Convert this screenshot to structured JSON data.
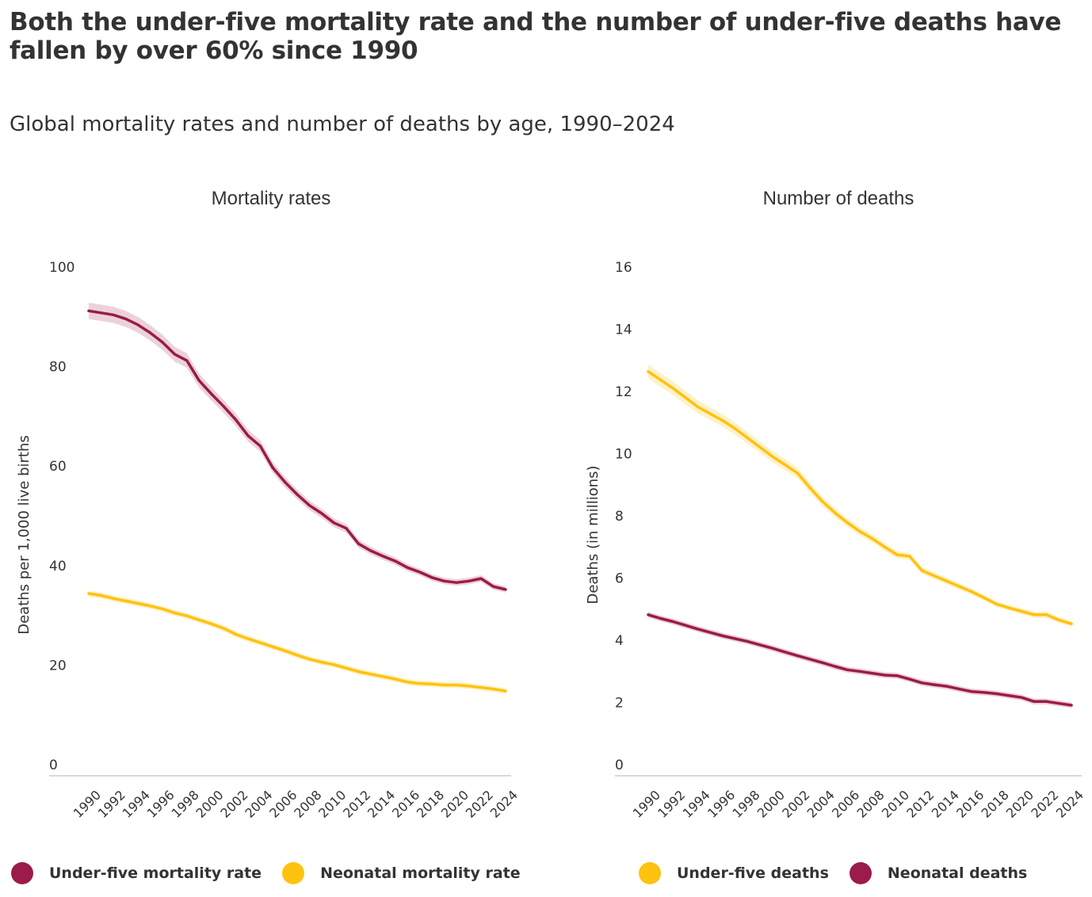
{
  "title": "Both the under-five mortality rate and the number of under-five deaths have fallen by over 60% since 1990",
  "subtitle": "Global mortality rates and number of deaths by age, 1990–2024",
  "colors": {
    "maroon": "#9b1b4b",
    "yellow": "#ffc20e",
    "maroon_band": "#e9cdd6",
    "yellow_band": "#fff0c2",
    "axis": "#cccccc",
    "text": "#333333"
  },
  "chart_data": [
    {
      "type": "line",
      "title": "Mortality rates",
      "ylabel": "Deaths per 1,000 live births",
      "xlabel": "",
      "ylim": [
        0,
        100
      ],
      "yticks": [
        0,
        20,
        40,
        60,
        80,
        100
      ],
      "xticks": [
        "1990",
        "1992",
        "1994",
        "1996",
        "1998",
        "2000",
        "2002",
        "2004",
        "2006",
        "2008",
        "2010",
        "2012",
        "2014",
        "2016",
        "2018",
        "2020",
        "2022",
        "2024"
      ],
      "grid": false,
      "legend": "bottom-left",
      "x": [
        1990,
        1991,
        1992,
        1993,
        1994,
        1995,
        1996,
        1997,
        1998,
        1999,
        2000,
        2001,
        2002,
        2003,
        2004,
        2005,
        2006,
        2007,
        2008,
        2009,
        2010,
        2011,
        2012,
        2013,
        2014,
        2015,
        2016,
        2017,
        2018,
        2019,
        2020,
        2021,
        2022,
        2023,
        2024
      ],
      "series": [
        {
          "name": "Under-five mortality rate",
          "color": "#9b1b4b",
          "band": "#e9cdd6",
          "values": [
            91.2,
            90.8,
            90.4,
            89.6,
            88.4,
            86.8,
            84.9,
            82.5,
            81.2,
            77.2,
            74.5,
            72.0,
            69.3,
            66.1,
            64.0,
            59.7,
            56.8,
            54.3,
            52.1,
            50.5,
            48.6,
            47.5,
            44.4,
            43.0,
            41.9,
            40.9,
            39.6,
            38.7,
            37.6,
            36.9,
            36.6,
            36.9,
            37.4,
            35.8,
            35.2
          ]
        },
        {
          "name": "Neonatal mortality rate",
          "color": "#ffc20e",
          "band": "#fff0c2",
          "values": [
            34.4,
            34.0,
            33.4,
            32.9,
            32.4,
            31.9,
            31.3,
            30.5,
            29.9,
            29.1,
            28.3,
            27.4,
            26.2,
            25.3,
            24.5,
            23.7,
            22.9,
            22.0,
            21.2,
            20.6,
            20.1,
            19.4,
            18.7,
            18.2,
            17.7,
            17.2,
            16.6,
            16.3,
            16.2,
            16.0,
            16.0,
            15.8,
            15.5,
            15.2,
            14.8
          ]
        }
      ]
    },
    {
      "type": "line",
      "title": "Number of deaths",
      "ylabel": "Deaths (in millions)",
      "xlabel": "",
      "ylim": [
        0,
        16
      ],
      "yticks": [
        0,
        2,
        4,
        6,
        8,
        10,
        12,
        14,
        16
      ],
      "xticks": [
        "1990",
        "1992",
        "1994",
        "1996",
        "1998",
        "2000",
        "2002",
        "2004",
        "2006",
        "2008",
        "2010",
        "2012",
        "2014",
        "2016",
        "2018",
        "2020",
        "2022",
        "2024"
      ],
      "grid": false,
      "legend": "bottom-left",
      "x": [
        1990,
        1991,
        1992,
        1993,
        1994,
        1995,
        1996,
        1997,
        1998,
        1999,
        2000,
        2001,
        2002,
        2003,
        2004,
        2005,
        2006,
        2007,
        2008,
        2009,
        2010,
        2011,
        2012,
        2013,
        2014,
        2015,
        2016,
        2017,
        2018,
        2019,
        2020,
        2021,
        2022,
        2023,
        2024
      ],
      "series": [
        {
          "name": "Under-five deaths",
          "color": "#ffc20e",
          "band": "#fff0c2",
          "values": [
            12.64,
            12.37,
            12.1,
            11.8,
            11.5,
            11.28,
            11.06,
            10.8,
            10.5,
            10.2,
            9.9,
            9.64,
            9.37,
            8.9,
            8.46,
            8.1,
            7.78,
            7.5,
            7.27,
            7.0,
            6.75,
            6.7,
            6.24,
            6.07,
            5.9,
            5.73,
            5.56,
            5.36,
            5.16,
            5.04,
            4.93,
            4.82,
            4.82,
            4.65,
            4.53
          ]
        },
        {
          "name": "Neonatal deaths",
          "color": "#9b1b4b",
          "band": "#e9cdd6",
          "values": [
            4.82,
            4.7,
            4.6,
            4.48,
            4.36,
            4.25,
            4.14,
            4.05,
            3.96,
            3.85,
            3.74,
            3.62,
            3.5,
            3.39,
            3.28,
            3.16,
            3.05,
            3.0,
            2.94,
            2.88,
            2.86,
            2.75,
            2.63,
            2.57,
            2.52,
            2.43,
            2.35,
            2.32,
            2.28,
            2.22,
            2.16,
            2.03,
            2.03,
            1.97,
            1.91
          ]
        }
      ]
    }
  ]
}
